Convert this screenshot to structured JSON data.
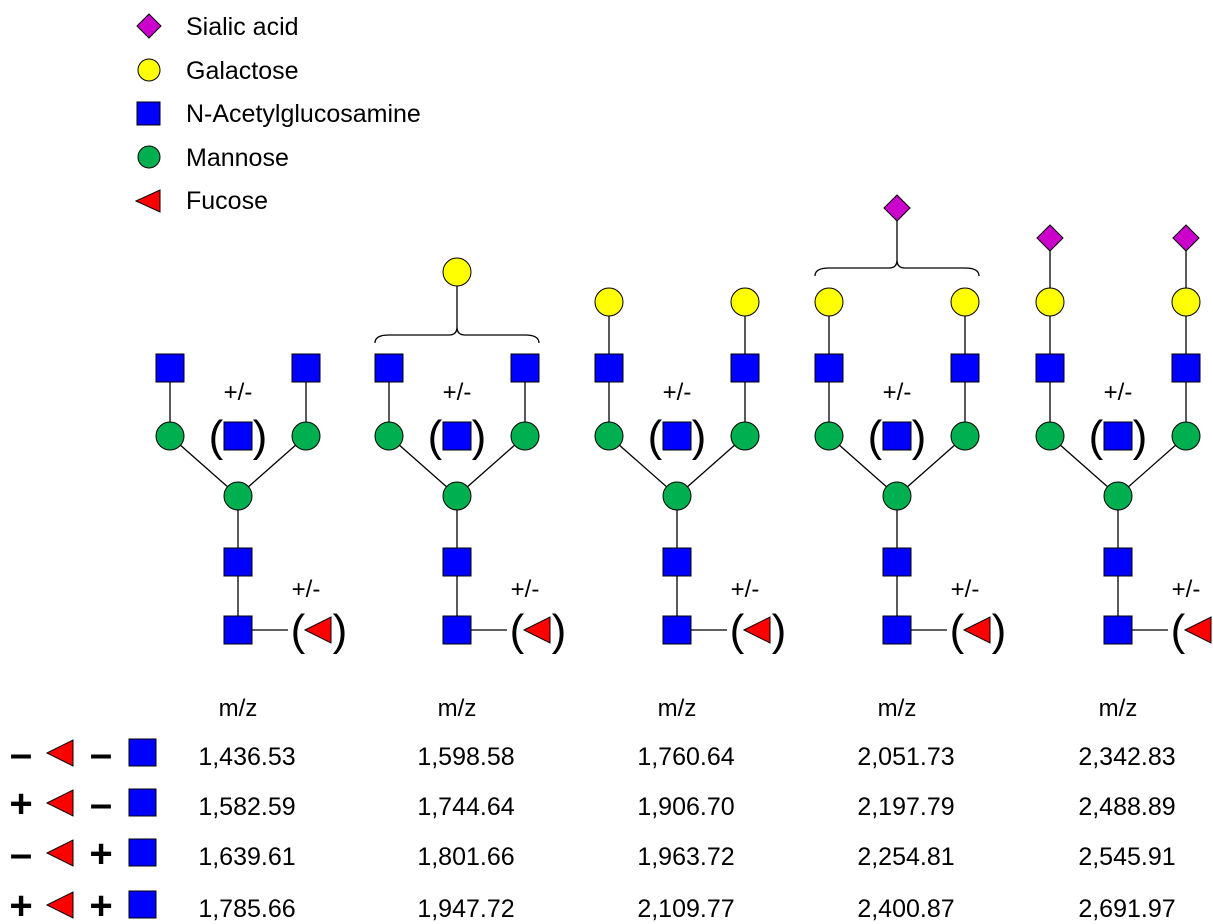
{
  "legend": [
    {
      "shape": "diamond",
      "label": "Sialic acid",
      "color": "#cc00cc"
    },
    {
      "shape": "circle",
      "label": "Galactose",
      "color": "#ffff00"
    },
    {
      "shape": "square",
      "label": "N-Acetylglucosamine",
      "color": "#0000ff"
    },
    {
      "shape": "circle",
      "label": "Mannose",
      "color": "#00b050"
    },
    {
      "shape": "triangle",
      "label": "Fucose",
      "color": "#ff0000"
    }
  ],
  "optional_mark": "+/-",
  "paren_open": "(",
  "paren_close": ")",
  "mz_label": "m/z",
  "row_signs": [
    {
      "fucose": "-",
      "glcnac": "-"
    },
    {
      "fucose": "+",
      "glcnac": "-"
    },
    {
      "fucose": "-",
      "glcnac": "+"
    },
    {
      "fucose": "+",
      "glcnac": "+"
    }
  ],
  "structures": [
    {
      "name": "structure-1",
      "mz": [
        "1,436.53",
        "1,582.59",
        "1,639.61",
        "1,785.66"
      ]
    },
    {
      "name": "structure-2",
      "mz": [
        "1,598.58",
        "1,744.64",
        "1,801.66",
        "1,947.72"
      ]
    },
    {
      "name": "structure-3",
      "mz": [
        "1,760.64",
        "1,906.70",
        "1,963.72",
        "2,109.77"
      ]
    },
    {
      "name": "structure-4",
      "mz": [
        "2,051.73",
        "2,197.79",
        "2,254.81",
        "2,400.87"
      ]
    },
    {
      "name": "structure-5",
      "mz": [
        "2,342.83",
        "2,488.89",
        "2,545.91",
        "2,691.97"
      ]
    }
  ],
  "colors": {
    "sialic": "#cc00cc",
    "galactose": "#ffff00",
    "glcnac": "#0000ff",
    "mannose": "#00b050",
    "fucose": "#ff0000"
  }
}
